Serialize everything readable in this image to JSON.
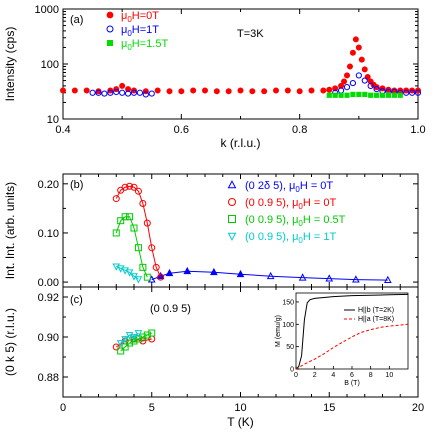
{
  "chart_data": [
    {
      "panel_label": "(a)",
      "type": "scatter",
      "xlabel": "k (r.l.u.)",
      "ylabel": "Intensity (cps)",
      "xlim": [
        0.4,
        1.0
      ],
      "ylim": [
        10,
        1000
      ],
      "yscale": "log",
      "xticks": [
        "0.4",
        "0.6",
        "0.8",
        "1.0"
      ],
      "yticks": [
        "10",
        "100",
        "1000"
      ],
      "annotation": "T=3K",
      "legend_position": "top-left",
      "series": [
        {
          "name": "μ0H=0T",
          "name_main": "μ",
          "name_sub": "0",
          "name_rest": "H=0T",
          "color": "#ff0000",
          "marker": "filled-circle",
          "x": [
            0.4,
            0.42,
            0.44,
            0.46,
            0.48,
            0.49,
            0.5,
            0.51,
            0.52,
            0.54,
            0.56,
            0.58,
            0.6,
            0.62,
            0.64,
            0.66,
            0.68,
            0.7,
            0.72,
            0.74,
            0.76,
            0.78,
            0.8,
            0.82,
            0.84,
            0.85,
            0.86,
            0.87,
            0.875,
            0.88,
            0.885,
            0.89,
            0.895,
            0.9,
            0.905,
            0.91,
            0.915,
            0.92,
            0.925,
            0.93,
            0.94,
            0.95,
            0.96,
            0.97,
            0.98,
            0.99,
            1.0
          ],
          "y": [
            33,
            33,
            33,
            32,
            33,
            35,
            40,
            35,
            33,
            32,
            33,
            32,
            32,
            33,
            33,
            32,
            32,
            33,
            32,
            32,
            33,
            33,
            32,
            33,
            33,
            34,
            36,
            40,
            48,
            62,
            90,
            160,
            280,
            200,
            120,
            80,
            58,
            48,
            42,
            38,
            36,
            34,
            33,
            33,
            33,
            33,
            33
          ]
        },
        {
          "name": "μ0H=1T",
          "name_main": "μ",
          "name_sub": "0",
          "name_rest": "H=1T",
          "color": "#0000ff",
          "marker": "open-circle",
          "x": [
            0.45,
            0.46,
            0.47,
            0.48,
            0.49,
            0.5,
            0.51,
            0.52,
            0.53,
            0.54,
            0.55,
            0.86,
            0.87,
            0.88,
            0.89,
            0.9,
            0.91,
            0.92,
            0.93,
            0.94,
            0.95,
            0.96,
            0.97,
            0.98,
            0.99,
            1.0
          ],
          "y": [
            30,
            30,
            29,
            30,
            31,
            30,
            29,
            30,
            30,
            28,
            29,
            30,
            33,
            38,
            45,
            62,
            50,
            40,
            35,
            32,
            31,
            31,
            30,
            30,
            30,
            30
          ]
        },
        {
          "name": "μ0H=1.5T",
          "name_main": "μ",
          "name_sub": "0",
          "name_rest": "H=1.5T",
          "color": "#00dd00",
          "marker": "filled-square",
          "x": [
            0.85,
            0.86,
            0.87,
            0.88,
            0.89,
            0.9,
            0.91,
            0.92,
            0.93,
            0.94,
            0.95,
            0.96,
            0.97
          ],
          "y": [
            27,
            27,
            27,
            27,
            28,
            28,
            28,
            27,
            27,
            27,
            27,
            27,
            27
          ]
        }
      ]
    },
    {
      "panel_label": "(b)",
      "type": "scatter",
      "xlabel": "T (K)",
      "ylabel": "Int. Int. (arb. units)",
      "xlim": [
        0,
        20
      ],
      "ylim": [
        -0.01,
        0.22
      ],
      "yticks": [
        "0.00",
        "0.10",
        "0.20"
      ],
      "legend_position": "top-right",
      "series": [
        {
          "name": "(0 2δ 5),  μ0H = 0T",
          "name_main": "(0 2δ 5),  μ",
          "name_sub": "0",
          "name_rest": "H = 0T",
          "color": "#0000ff",
          "marker": "triangle-up",
          "x": [
            5.0,
            5.5,
            6.0,
            7.0,
            8.5,
            10.0,
            11.7,
            13.5,
            15.0,
            16.5,
            18.3
          ],
          "y": [
            0.005,
            0.012,
            0.018,
            0.022,
            0.02,
            0.016,
            0.012,
            0.009,
            0.007,
            0.005,
            0.004
          ]
        },
        {
          "name": "(0 0.9 5),  μ0H = 0T",
          "name_main": "(0 0.9 5),  μ",
          "name_sub": "0",
          "name_rest": "H = 0T",
          "color": "#ff0000",
          "marker": "open-circle",
          "x": [
            3.0,
            3.25,
            3.5,
            3.75,
            4.0,
            4.25,
            4.5,
            4.75,
            5.0,
            5.25,
            5.5
          ],
          "y": [
            0.17,
            0.187,
            0.193,
            0.195,
            0.193,
            0.185,
            0.16,
            0.12,
            0.07,
            0.03,
            0.01
          ]
        },
        {
          "name": "(0 0.9 5),  μ0H = 0.5T",
          "name_main": "(0 0.9 5),  μ",
          "name_sub": "0",
          "name_rest": "H = 0.5T",
          "color": "#00cc00",
          "marker": "open-square",
          "x": [
            3.0,
            3.25,
            3.5,
            3.75,
            4.0,
            4.25,
            4.5,
            4.75
          ],
          "y": [
            0.1,
            0.125,
            0.133,
            0.133,
            0.11,
            0.07,
            0.03,
            0.01
          ]
        },
        {
          "name": "(0 0.9 5),  μ0H = 1T",
          "name_main": "(0 0.9 5),  μ",
          "name_sub": "0",
          "name_rest": "H = 1T",
          "color": "#00cccc",
          "marker": "triangle-down",
          "x": [
            3.0,
            3.25,
            3.5,
            3.75,
            4.0,
            4.25
          ],
          "y": [
            0.032,
            0.028,
            0.024,
            0.02,
            0.012,
            0.006
          ]
        }
      ]
    },
    {
      "panel_label": "(c)",
      "type": "scatter",
      "xlabel": "T (K)",
      "ylabel": "(0 k 5)  (r.l.u.)",
      "xlim": [
        0,
        20
      ],
      "ylim": [
        0.87,
        0.925
      ],
      "xticks": [
        "0",
        "5",
        "10",
        "15",
        "20"
      ],
      "yticks": [
        "0.88",
        "0.90",
        "0.92"
      ],
      "annotation": "(0 0.9 5)",
      "series": [
        {
          "name": "μ0H = 0T",
          "color": "#ff0000",
          "marker": "open-circle",
          "x": [
            3.0,
            3.5,
            4.0,
            4.5,
            5.0
          ],
          "y": [
            0.895,
            0.898,
            0.899,
            0.898,
            0.899
          ]
        },
        {
          "name": "μ0H = 0.5T",
          "color": "#00cc00",
          "marker": "open-square",
          "x": [
            3.25,
            3.5,
            3.75,
            4.0,
            4.25,
            4.5,
            4.75,
            5.0
          ],
          "y": [
            0.893,
            0.895,
            0.897,
            0.898,
            0.899,
            0.9,
            0.901,
            0.902
          ]
        },
        {
          "name": "μ0H = 1T",
          "color": "#00cccc",
          "marker": "triangle-down",
          "x": [
            3.25,
            3.5,
            3.75,
            4.0,
            4.25
          ],
          "y": [
            0.897,
            0.899,
            0.901,
            0.9,
            0.902
          ]
        }
      ]
    },
    {
      "panel_label": "inset",
      "type": "line",
      "xlabel": "B (T)",
      "ylabel": "M (emu/g)",
      "xlim": [
        0,
        12
      ],
      "ylim": [
        0,
        170
      ],
      "xticks": [
        "0",
        "2",
        "4",
        "6",
        "8",
        "10"
      ],
      "yticks": [
        "0",
        "50",
        "100",
        "150"
      ],
      "legend_position": "right",
      "series": [
        {
          "name": "H||b (T=2K)",
          "color": "#000000",
          "line": "solid",
          "x": [
            0,
            0.3,
            0.6,
            0.9,
            1.2,
            1.5,
            2,
            3,
            4,
            6,
            8,
            10,
            12
          ],
          "y": [
            0,
            6,
            30,
            110,
            148,
            155,
            158,
            160,
            162,
            164,
            165,
            166,
            167
          ]
        },
        {
          "name": "H||a (T=8K)",
          "color": "#ff0000",
          "line": "dashed",
          "x": [
            0,
            0.5,
            1,
            2,
            3,
            4,
            5,
            6,
            7,
            8,
            9,
            10,
            12
          ],
          "y": [
            0,
            6,
            12,
            22,
            34,
            48,
            60,
            72,
            82,
            88,
            93,
            96,
            100
          ]
        }
      ]
    }
  ]
}
